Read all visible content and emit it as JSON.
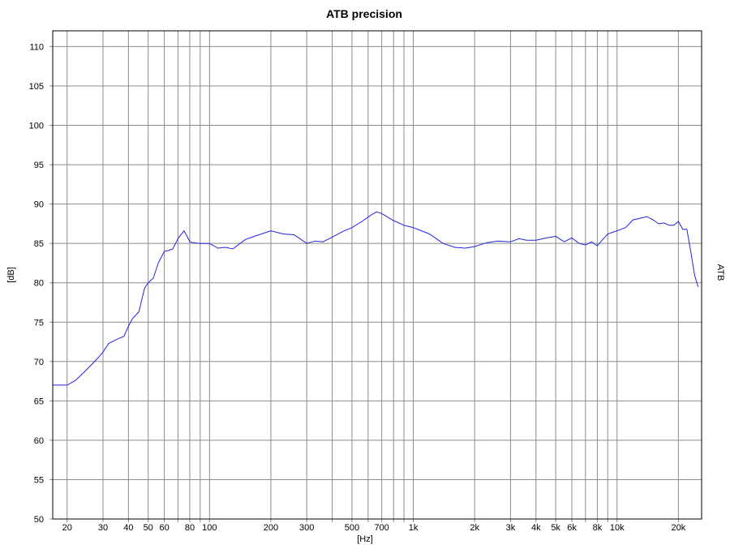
{
  "chart_data": {
    "type": "line",
    "title": "ATB precision",
    "xlabel": "[Hz]",
    "ylabel": "[dB]",
    "x_scale": "log",
    "xlim": [
      17,
      26000
    ],
    "ylim": [
      50,
      112
    ],
    "grid": true,
    "right_label": "ATB",
    "colors": {
      "series": "#2222dd",
      "grid": "#8c8c8c",
      "frame": "#000000"
    },
    "x_ticks": [
      {
        "value": 20,
        "label": "20"
      },
      {
        "value": 30,
        "label": "30"
      },
      {
        "value": 40,
        "label": "40"
      },
      {
        "value": 50,
        "label": "50"
      },
      {
        "value": 60,
        "label": "60"
      },
      {
        "value": 80,
        "label": "80"
      },
      {
        "value": 100,
        "label": "100"
      },
      {
        "value": 200,
        "label": "200"
      },
      {
        "value": 300,
        "label": "300"
      },
      {
        "value": 500,
        "label": "500"
      },
      {
        "value": 700,
        "label": "700"
      },
      {
        "value": 1000,
        "label": "1k"
      },
      {
        "value": 2000,
        "label": "2k"
      },
      {
        "value": 3000,
        "label": "3k"
      },
      {
        "value": 4000,
        "label": "4k"
      },
      {
        "value": 5000,
        "label": "5k"
      },
      {
        "value": 6000,
        "label": "6k"
      },
      {
        "value": 8000,
        "label": "8k"
      },
      {
        "value": 10000,
        "label": "10k"
      },
      {
        "value": 20000,
        "label": "20k"
      }
    ],
    "x_gridlines": [
      20,
      30,
      40,
      50,
      60,
      70,
      80,
      90,
      100,
      200,
      300,
      400,
      500,
      600,
      700,
      800,
      900,
      1000,
      2000,
      3000,
      4000,
      5000,
      6000,
      7000,
      8000,
      9000,
      10000,
      20000
    ],
    "y_ticks": [
      50,
      55,
      60,
      65,
      70,
      75,
      80,
      85,
      90,
      95,
      100,
      105,
      110
    ],
    "series": [
      {
        "name": "ATB",
        "x": [
          17,
          20,
          22,
          25,
          28,
          30,
          32,
          35,
          38,
          40,
          42,
          45,
          48,
          50,
          53,
          56,
          60,
          63,
          66,
          70,
          75,
          78,
          80,
          83,
          90,
          100,
          110,
          120,
          130,
          150,
          170,
          200,
          230,
          260,
          300,
          330,
          360,
          400,
          450,
          500,
          560,
          620,
          660,
          700,
          800,
          900,
          1000,
          1200,
          1400,
          1600,
          1800,
          2000,
          2300,
          2600,
          3000,
          3300,
          3600,
          4000,
          4500,
          5000,
          5500,
          6000,
          6500,
          7000,
          7500,
          8000,
          8500,
          9000,
          10000,
          11000,
          12000,
          13000,
          14000,
          15000,
          16000,
          17000,
          18000,
          19000,
          20000,
          21000,
          22000,
          23000,
          24000,
          25000
        ],
        "y": [
          67.0,
          67.0,
          67.6,
          69.0,
          70.3,
          71.2,
          72.3,
          72.8,
          73.2,
          74.5,
          75.5,
          76.3,
          79.3,
          80.0,
          80.6,
          82.5,
          84.0,
          84.1,
          84.3,
          85.6,
          86.6,
          85.8,
          85.2,
          85.1,
          85.0,
          85.0,
          84.4,
          84.5,
          84.3,
          85.5,
          86.0,
          86.6,
          86.2,
          86.1,
          85.0,
          85.3,
          85.2,
          85.8,
          86.5,
          87.0,
          87.8,
          88.6,
          89.0,
          88.8,
          87.9,
          87.3,
          87.0,
          86.2,
          85.0,
          84.5,
          84.4,
          84.6,
          85.1,
          85.3,
          85.2,
          85.6,
          85.4,
          85.4,
          85.7,
          85.9,
          85.2,
          85.7,
          85.0,
          84.8,
          85.2,
          84.7,
          85.5,
          86.2,
          86.6,
          87.0,
          88.0,
          88.2,
          88.4,
          88.0,
          87.5,
          87.6,
          87.3,
          87.3,
          87.8,
          86.8,
          86.8,
          84.0,
          81.0,
          79.5
        ]
      }
    ]
  }
}
